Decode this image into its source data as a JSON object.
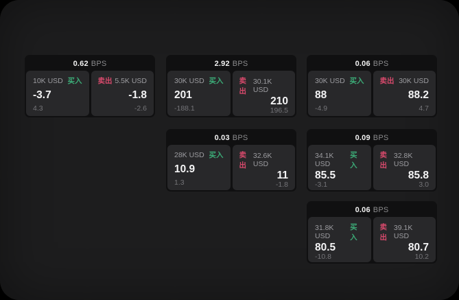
{
  "labels": {
    "bps_unit": "BPS",
    "buy": "买入",
    "sell": "卖出"
  },
  "colors": {
    "buy_green": "#3cab77",
    "sell_red": "#d6496b",
    "surface": "#1d1d1e",
    "card": "#101011",
    "panel": "#28282a"
  },
  "cards": [
    {
      "bps": "0.62",
      "buy": {
        "amount": "10K USD",
        "value": "-3.7",
        "sub": "4.3"
      },
      "sell": {
        "amount": "5.5K USD",
        "value": "-1.8",
        "sub": "-2.6"
      }
    },
    {
      "bps": "2.92",
      "buy": {
        "amount": "30K USD",
        "value": "201",
        "sub": "-188.1"
      },
      "sell": {
        "amount": "30.1K USD",
        "value": "210",
        "sub": "196.5"
      }
    },
    {
      "bps": "0.06",
      "buy": {
        "amount": "30K USD",
        "value": "88",
        "sub": "-4.9"
      },
      "sell": {
        "amount": "30K USD",
        "value": "88.2",
        "sub": "4.7"
      }
    },
    {
      "bps": "0.03",
      "buy": {
        "amount": "28K USD",
        "value": "10.9",
        "sub": "1.3"
      },
      "sell": {
        "amount": "32.6K USD",
        "value": "11",
        "sub": "-1.8"
      }
    },
    {
      "bps": "0.09",
      "buy": {
        "amount": "34.1K USD",
        "value": "85.5",
        "sub": "-3.1"
      },
      "sell": {
        "amount": "32.8K USD",
        "value": "85.8",
        "sub": "3.0"
      }
    },
    {
      "bps": "0.06",
      "buy": {
        "amount": "31.8K USD",
        "value": "80.5",
        "sub": "-10.8"
      },
      "sell": {
        "amount": "39.1K USD",
        "value": "80.7",
        "sub": "10.2"
      }
    }
  ]
}
